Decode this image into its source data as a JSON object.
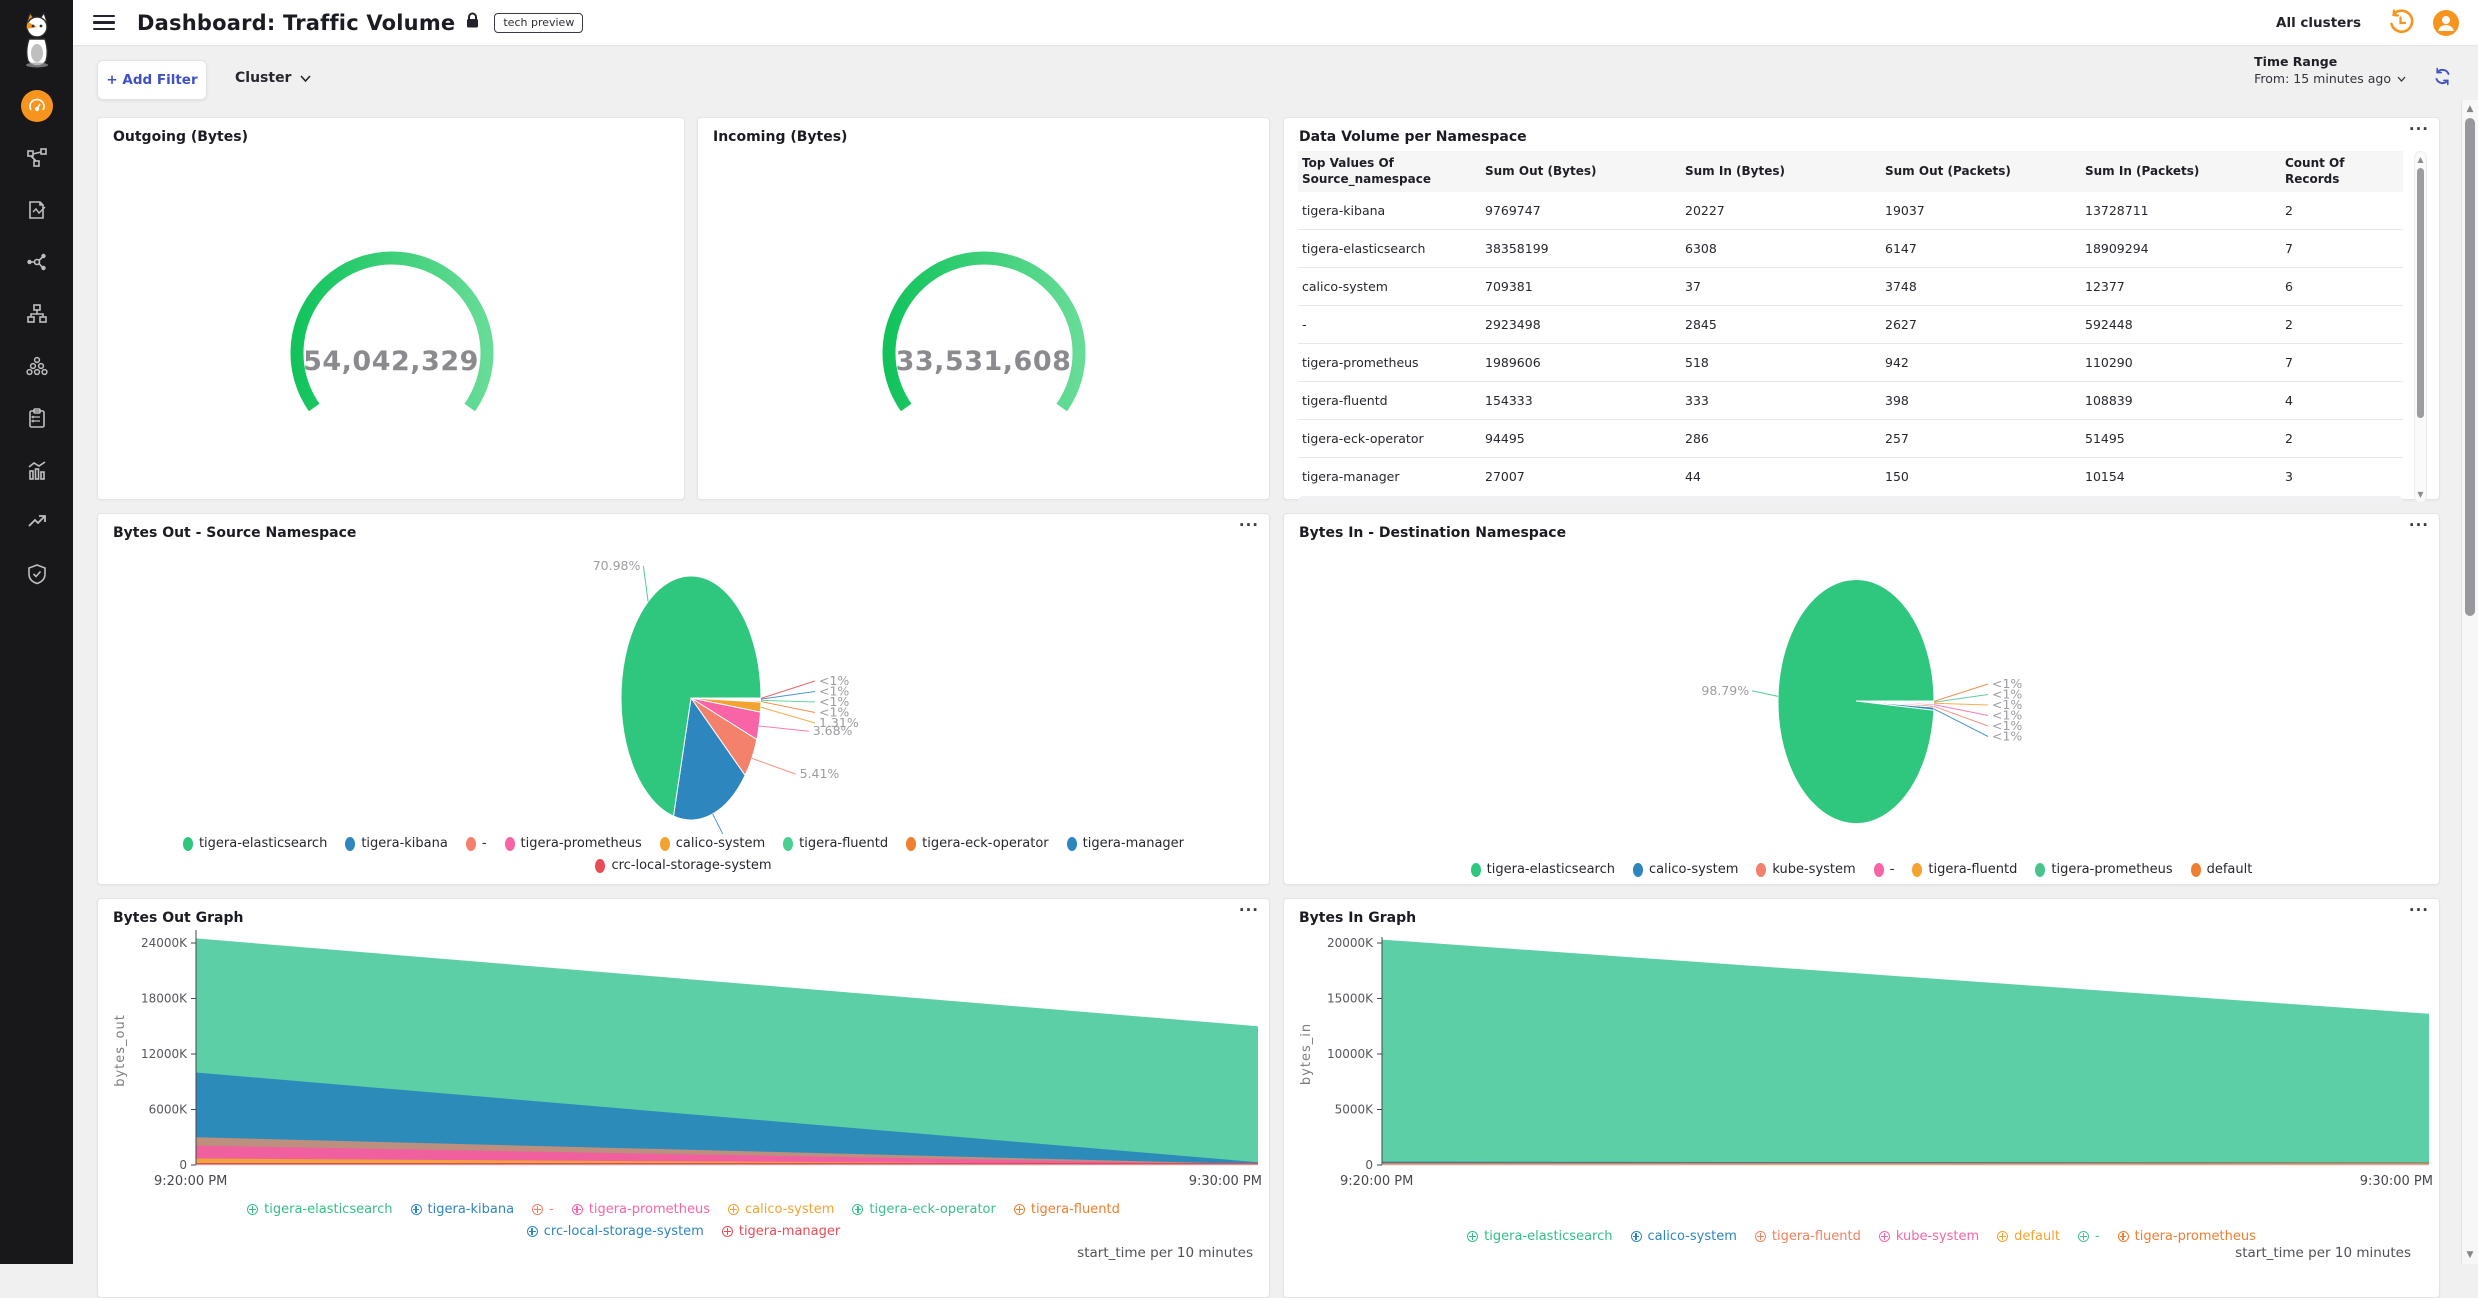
{
  "app": {
    "title": "Dashboard: Traffic Volume",
    "badge": "tech preview",
    "all_clusters_label": "All clusters"
  },
  "icons": {
    "panel_menu": "···",
    "scroll_up": "▲",
    "scroll_down": "▼"
  },
  "sidebar": {
    "logo": "calico-cat-logo",
    "items": [
      "dashboards",
      "network-topology",
      "policies",
      "service-graph",
      "network-tree",
      "endpoints",
      "compliance-reports",
      "activity-metrics",
      "trends",
      "threat-defense"
    ],
    "active_item": "dashboards"
  },
  "filter_bar": {
    "add_filter_label": "+ Add Filter",
    "cluster_label": "Cluster",
    "time_range_label": "Time Range",
    "time_range_value": "From: 15 minutes ago"
  },
  "chart_data": [
    {
      "id": "outgoing-bytes",
      "type": "gauge",
      "title": "Outgoing (Bytes)",
      "value": 54042329,
      "display_value": "54,042,329",
      "arc_colors": [
        "#12c35c",
        "#67dc97"
      ]
    },
    {
      "id": "incoming-bytes",
      "type": "gauge",
      "title": "Incoming (Bytes)",
      "value": 33531608,
      "display_value": "33,531,608",
      "arc_colors": [
        "#12c35c",
        "#67dc97"
      ]
    },
    {
      "id": "data-volume-per-namespace",
      "type": "table",
      "title": "Data Volume per Namespace",
      "columns": [
        "Top Values Of Source_namespace",
        "Sum Out (Bytes)",
        "Sum In (Bytes)",
        "Sum Out (Packets)",
        "Sum In (Packets)",
        "Count Of Records"
      ],
      "rows": [
        [
          "tigera-kibana",
          "9769747",
          "20227",
          "19037",
          "13728711",
          "2"
        ],
        [
          "tigera-elasticsearch",
          "38358199",
          "6308",
          "6147",
          "18909294",
          "7"
        ],
        [
          "calico-system",
          "709381",
          "37",
          "3748",
          "12377",
          "6"
        ],
        [
          "-",
          "2923498",
          "2845",
          "2627",
          "592448",
          "2"
        ],
        [
          "tigera-prometheus",
          "1989606",
          "518",
          "942",
          "110290",
          "7"
        ],
        [
          "tigera-fluentd",
          "154333",
          "333",
          "398",
          "108839",
          "4"
        ],
        [
          "tigera-eck-operator",
          "94495",
          "286",
          "257",
          "51495",
          "2"
        ],
        [
          "tigera-manager",
          "27007",
          "44",
          "150",
          "10154",
          "3"
        ]
      ]
    },
    {
      "id": "bytes-out-source-namespace",
      "type": "pie",
      "title": "Bytes Out - Source Namespace",
      "slices": [
        {
          "label": "crc-local-storage-system",
          "pct": 0.1,
          "display": "<1%",
          "color": "#e84c57"
        },
        {
          "label": "tigera-manager",
          "pct": 0.12,
          "display": "<1%",
          "color": "#2e86bf"
        },
        {
          "label": "tigera-fluentd",
          "pct": 0.15,
          "display": "<1%",
          "color": "#49cf90"
        },
        {
          "label": "tigera-eck-operator",
          "pct": 0.17,
          "display": "<1%",
          "color": "#ee7e30"
        },
        {
          "label": "calico-system",
          "pct": 1.31,
          "display": "1.31%",
          "color": "#f3a32f"
        },
        {
          "label": "tigera-prometheus",
          "pct": 3.68,
          "display": "3.68%",
          "color": "#f964a7"
        },
        {
          "label": "-",
          "pct": 5.41,
          "display": "5.41%",
          "color": "#f4816c"
        },
        {
          "label": "tigera-kibana",
          "pct": 18.08,
          "display": "18.08%",
          "color": "#2e86bf"
        },
        {
          "label": "tigera-elasticsearch",
          "pct": 70.98,
          "display": "70.98%",
          "color": "#2fc67e"
        }
      ],
      "legend_rows": [
        [
          {
            "label": "tigera-elasticsearch",
            "color": "#2fc67e"
          },
          {
            "label": "tigera-kibana",
            "color": "#2e86bf"
          },
          {
            "label": "-",
            "color": "#f4816c"
          },
          {
            "label": "tigera-prometheus",
            "color": "#f964a7"
          },
          {
            "label": "calico-system",
            "color": "#f3a32f"
          },
          {
            "label": "tigera-fluentd",
            "color": "#49cf90"
          },
          {
            "label": "tigera-eck-operator",
            "color": "#ee7e30"
          },
          {
            "label": "tigera-manager",
            "color": "#2e86bf"
          }
        ],
        [
          {
            "label": "crc-local-storage-system",
            "color": "#e84c57"
          }
        ]
      ]
    },
    {
      "id": "bytes-in-destination-namespace",
      "type": "pie",
      "title": "Bytes In - Destination Namespace",
      "slices": [
        {
          "label": "default",
          "pct": 0.1,
          "display": "<1%",
          "color": "#ee7e30"
        },
        {
          "label": "tigera-prometheus",
          "pct": 0.12,
          "display": "<1%",
          "color": "#4ac28e"
        },
        {
          "label": "tigera-fluentd",
          "pct": 0.15,
          "display": "<1%",
          "color": "#f3a32f"
        },
        {
          "label": "-",
          "pct": 0.2,
          "display": "<1%",
          "color": "#f964a7"
        },
        {
          "label": "kube-system",
          "pct": 0.25,
          "display": "<1%",
          "color": "#f4816c"
        },
        {
          "label": "calico-system",
          "pct": 0.39,
          "display": "<1%",
          "color": "#2e86bf"
        },
        {
          "label": "tigera-elasticsearch",
          "pct": 98.79,
          "display": "98.79%",
          "color": "#2fc67e"
        }
      ],
      "legend_rows": [
        [
          {
            "label": "tigera-elasticsearch",
            "color": "#2fc67e"
          },
          {
            "label": "calico-system",
            "color": "#2e86bf"
          },
          {
            "label": "kube-system",
            "color": "#f4816c"
          },
          {
            "label": "-",
            "color": "#f964a7"
          },
          {
            "label": "tigera-fluentd",
            "color": "#f3a32f"
          },
          {
            "label": "tigera-prometheus",
            "color": "#4ac28e"
          },
          {
            "label": "default",
            "color": "#ee7e30"
          }
        ]
      ]
    },
    {
      "id": "bytes-out-graph",
      "type": "area",
      "title": "Bytes Out Graph",
      "ylabel": "bytes_out",
      "x_caption": "start_time per 10 minutes",
      "x_labels": [
        "9:20:00 PM",
        "9:30:00 PM"
      ],
      "y_ticks": [
        "0",
        "6000K",
        "12000K",
        "18000K",
        "24000K"
      ],
      "y_tick_step_k": 6000,
      "series": [
        {
          "name": "tigera-elasticsearch",
          "color": "#5dcfa6",
          "band_k": [
            14500,
            14700
          ]
        },
        {
          "name": "tigera-kibana",
          "color": "#2d8bba",
          "band_k": [
            7000,
            210
          ]
        },
        {
          "name": "-",
          "color": "#bd8f7f",
          "band_k": [
            900,
            30
          ]
        },
        {
          "name": "tigera-prometheus",
          "color": "#f0609f",
          "band_k": [
            1400,
            25
          ]
        },
        {
          "name": "calico-system",
          "color": "#f0a43e",
          "band_k": [
            550,
            20
          ]
        },
        {
          "name": "tigera-eck-operator",
          "color": "#3dbf8c",
          "band_k": [
            50,
            4
          ]
        },
        {
          "name": "tigera-fluentd",
          "color": "#ef7e2e",
          "band_k": [
            40,
            3
          ]
        },
        {
          "name": "crc-local-storage-system",
          "color": "#2e86bf",
          "band_k": [
            30,
            3
          ]
        },
        {
          "name": "tigera-manager",
          "color": "#e04a52",
          "band_k": [
            30,
            5
          ]
        }
      ],
      "legend_rows": [
        [
          {
            "label": "tigera-elasticsearch",
            "color": "#36bd87"
          },
          {
            "label": "tigera-kibana",
            "color": "#2e86bf"
          },
          {
            "label": "-",
            "color": "#f4816c"
          },
          {
            "label": "tigera-prometheus",
            "color": "#f964a7"
          },
          {
            "label": "calico-system",
            "color": "#f3a32f"
          },
          {
            "label": "tigera-eck-operator",
            "color": "#3dbf8c"
          },
          {
            "label": "tigera-fluentd",
            "color": "#ef7e2e"
          }
        ],
        [
          {
            "label": "crc-local-storage-system",
            "color": "#2e86bf"
          },
          {
            "label": "tigera-manager",
            "color": "#e84c57"
          }
        ]
      ]
    },
    {
      "id": "bytes-in-graph",
      "type": "area",
      "title": "Bytes In Graph",
      "ylabel": "bytes_in",
      "x_caption": "start_time per 10 minutes",
      "x_labels": [
        "9:20:00 PM",
        "9:30:00 PM"
      ],
      "y_ticks": [
        "0",
        "5000K",
        "10000K",
        "15000K",
        "20000K"
      ],
      "y_tick_step_k": 5000,
      "series": [
        {
          "name": "tigera-elasticsearch",
          "color": "#5dcfa6",
          "band_k": [
            20000,
            13400
          ]
        },
        {
          "name": "calico-system",
          "color": "#2d7fc0",
          "band_k": [
            240,
            170
          ]
        },
        {
          "name": "tigera-fluentd",
          "color": "#f08161",
          "band_k": [
            20,
            15
          ]
        },
        {
          "name": "kube-system",
          "color": "#f964a7",
          "band_k": [
            10,
            8
          ]
        },
        {
          "name": "default",
          "color": "#f3a32f",
          "band_k": [
            10,
            8
          ]
        },
        {
          "name": "-",
          "color": "#4ac28e",
          "band_k": [
            5,
            4
          ]
        },
        {
          "name": "tigera-prometheus",
          "color": "#ee7e30",
          "band_k": [
            25,
            20
          ]
        }
      ],
      "legend_rows": [
        [
          {
            "label": "tigera-elasticsearch",
            "color": "#36bd87"
          },
          {
            "label": "calico-system",
            "color": "#2e86bf"
          },
          {
            "label": "tigera-fluentd",
            "color": "#f08161"
          },
          {
            "label": "kube-system",
            "color": "#f964a7"
          },
          {
            "label": "default",
            "color": "#f3a32f"
          },
          {
            "label": "-",
            "color": "#4ac28e"
          },
          {
            "label": "tigera-prometheus",
            "color": "#ee7e30"
          }
        ]
      ]
    }
  ]
}
